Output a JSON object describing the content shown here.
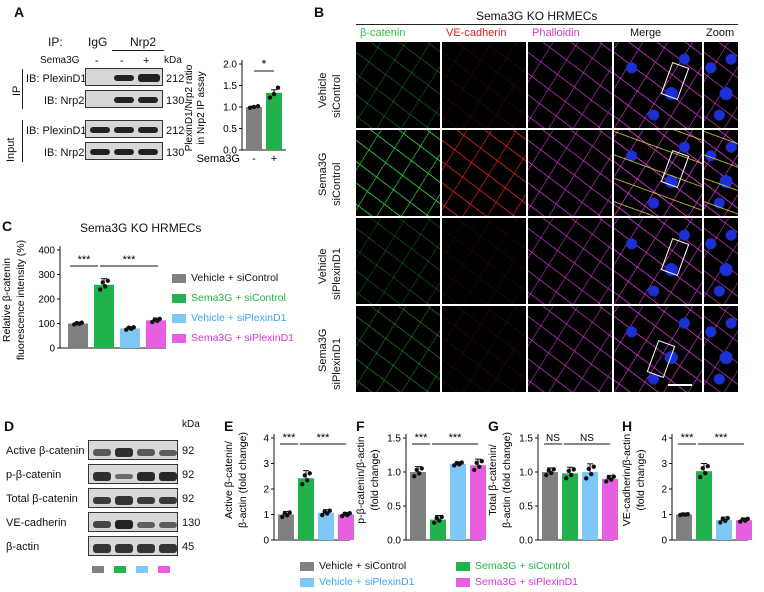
{
  "colors": {
    "gray": "#808080",
    "green": "#22b24c",
    "blue": "#7ec8f7",
    "magenta": "#e75fe0",
    "c_green": "#2cc83a",
    "c_red": "#e02020",
    "c_magenta": "#d437d4"
  },
  "panels": {
    "A": "A",
    "B": "B",
    "C": "C",
    "D": "D",
    "E": "E",
    "F": "F",
    "G": "G",
    "H": "H"
  },
  "a": {
    "ip_label": "IP:",
    "igg": "IgG",
    "nrp2": "Nrp2",
    "sema3g": "Sema3G",
    "minus": "-",
    "plus": "+",
    "kda": "kDa",
    "ip_side": "IP",
    "input_side": "Input",
    "rows": [
      {
        "label": "IB: PlexinD1",
        "kda": "212"
      },
      {
        "label": "IB: Nrp2",
        "kda": "130"
      },
      {
        "label": "IB: PlexinD1",
        "kda": "212"
      },
      {
        "label": "IB: Nrp2",
        "kda": "130"
      }
    ],
    "chart": {
      "ylabel1": "PlexinD1/Nrp2 ratio",
      "ylabel2": "in Nrp2 IP assay",
      "xlabel": "Sema3G",
      "x_minus": "-",
      "x_plus": "+",
      "sig": "*",
      "ticks": [
        "0.0",
        "0.5",
        "1.0",
        "1.5",
        "2.0"
      ]
    }
  },
  "b": {
    "title": "Sema3G KO HRMECs",
    "cols": [
      "β-catenin",
      "VE-cadherin",
      "Phalloidin",
      "Merge",
      "Zoom"
    ],
    "rows": [
      [
        "Vehicle",
        "siControl"
      ],
      [
        "Sema3G",
        "siControl"
      ],
      [
        "Vehicle",
        "siPlexinD1"
      ],
      [
        "Sema3G",
        "siPlexinD1"
      ]
    ]
  },
  "c": {
    "title": "Sema3G KO HRMECs",
    "ylabel1": "Relative β-catenin",
    "ylabel2": "fluorescence intensity (%)",
    "ticks": [
      "0",
      "100",
      "200",
      "300",
      "400"
    ],
    "sig1": "***",
    "sig2": "***",
    "legend": [
      "Vehicle + siControl",
      "Sema3G + siControl",
      "Vehicle + siPlexinD1",
      "Sema3G + siPlexinD1"
    ]
  },
  "d": {
    "kda": "kDa",
    "rows": [
      {
        "label": "Active β-catenin",
        "kda": "92"
      },
      {
        "label": "p-β-catenin",
        "kda": "92"
      },
      {
        "label": "Total β-catenin",
        "kda": "92"
      },
      {
        "label": "VE-cadherin",
        "kda": "130"
      },
      {
        "label": "β-actin",
        "kda": "45"
      }
    ]
  },
  "e": {
    "ylabel1": "Active β-catenin/",
    "ylabel2": "β-actin (fold change)",
    "ticks": [
      "0",
      "1",
      "2",
      "3",
      "4"
    ],
    "sig1": "***",
    "sig2": "***"
  },
  "f": {
    "ylabel1": "p-β-catenin/β-actin",
    "ylabel2": "(fold change)",
    "ticks": [
      "0.0",
      "0.5",
      "1.0",
      "1.5"
    ],
    "sig1": "***",
    "sig2": "***"
  },
  "g": {
    "ylabel1": "Total β-catenin/",
    "ylabel2": "β-actin (fold change)",
    "ticks": [
      "0.0",
      "0.5",
      "1.0",
      "1.5"
    ],
    "sig1": "NS",
    "sig2": "NS"
  },
  "h": {
    "ylabel1": "VE-cadherin/β-actin",
    "ylabel2": "(fold change)",
    "ticks": [
      "0",
      "1",
      "2",
      "3",
      "4"
    ],
    "sig1": "***",
    "sig2": "***"
  },
  "bottom_legend": [
    "Vehicle + siControl",
    "Sema3G + siControl",
    "Vehicle + siPlexinD1",
    "Sema3G + siPlexinD1"
  ],
  "chart_data": [
    {
      "panel": "A",
      "type": "bar",
      "categories": [
        "-",
        "+"
      ],
      "values": [
        1.0,
        1.33
      ],
      "ylim": [
        0,
        2.0
      ],
      "xlabel": "Sema3G",
      "ylabel": "PlexinD1/Nrp2 ratio in Nrp2 IP assay"
    },
    {
      "panel": "C",
      "type": "bar",
      "categories": [
        "Vehicle + siControl",
        "Sema3G + siControl",
        "Vehicle + siPlexinD1",
        "Sema3G + siPlexinD1"
      ],
      "values": [
        100,
        258,
        80,
        113
      ],
      "errors": [
        5,
        25,
        7,
        9
      ],
      "ylim": [
        0,
        400
      ],
      "ylabel": "Relative β-catenin fluorescence intensity (%)"
    },
    {
      "panel": "E",
      "type": "bar",
      "categories": [
        "Vehicle + siControl",
        "Sema3G + siControl",
        "Vehicle + siPlexinD1",
        "Sema3G + siPlexinD1"
      ],
      "values": [
        1.0,
        2.42,
        1.07,
        1.0
      ],
      "errors": [
        0.12,
        0.3,
        0.12,
        0.08
      ],
      "ylim": [
        0,
        4
      ],
      "ylabel": "Active β-catenin/β-actin (fold change)"
    },
    {
      "panel": "F",
      "type": "bar",
      "categories": [
        "Vehicle + siControl",
        "Sema3G + siControl",
        "Vehicle + siPlexinD1",
        "Sema3G + siPlexinD1"
      ],
      "values": [
        1.0,
        0.3,
        1.12,
        1.1
      ],
      "errors": [
        0.08,
        0.06,
        0.03,
        0.09
      ],
      "ylim": [
        0,
        1.5
      ],
      "ylabel": "p-β-catenin/β-actin (fold change)"
    },
    {
      "panel": "G",
      "type": "bar",
      "categories": [
        "Vehicle + siControl",
        "Sema3G + siControl",
        "Vehicle + siPlexinD1",
        "Sema3G + siPlexinD1"
      ],
      "values": [
        1.0,
        0.98,
        1.0,
        0.9
      ],
      "errors": [
        0.06,
        0.09,
        0.12,
        0.05
      ],
      "ylim": [
        0,
        1.5
      ],
      "ylabel": "Total β-catenin/β-actin (fold change)"
    },
    {
      "panel": "H",
      "type": "bar",
      "categories": [
        "Vehicle + siControl",
        "Sema3G + siControl",
        "Vehicle + siPlexinD1",
        "Sema3G + siPlexinD1"
      ],
      "values": [
        1.0,
        2.7,
        0.78,
        0.78
      ],
      "errors": [
        0.02,
        0.3,
        0.12,
        0.08
      ],
      "ylim": [
        0,
        4
      ],
      "ylabel": "VE-cadherin/β-actin (fold change)"
    }
  ]
}
